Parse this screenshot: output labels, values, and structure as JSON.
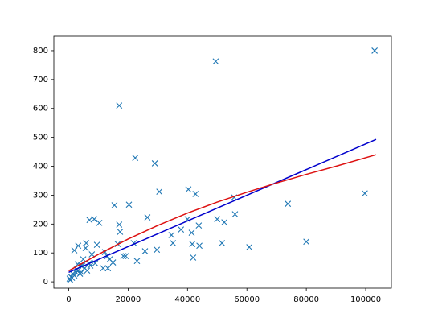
{
  "chart_data": {
    "type": "scatter",
    "xlim": [
      -5000,
      108650
    ],
    "ylim": [
      -22,
      850
    ],
    "xticks": [
      0,
      20000,
      40000,
      60000,
      80000,
      100000
    ],
    "yticks": [
      0,
      100,
      200,
      300,
      400,
      500,
      600,
      700,
      800
    ],
    "series": [
      {
        "type": "scatter",
        "marker": "x",
        "color": "#1f77b4",
        "x": [
          103000,
          49500,
          17000,
          22400,
          29000,
          40300,
          42700,
          30500,
          15400,
          20300,
          7000,
          8600,
          10300,
          26500,
          55700,
          73800,
          99700,
          56000,
          50000,
          52400,
          43800,
          40000,
          41400,
          37800,
          34600,
          35100,
          41600,
          44000,
          51600,
          17000,
          17300,
          16500,
          21900,
          18400,
          19200,
          23000,
          25700,
          29700,
          41900,
          60800,
          80000,
          1900,
          3200,
          5700,
          5900,
          9500,
          12200,
          13000,
          13800,
          11600,
          13200,
          14900,
          7800,
          6800,
          8900,
          4900,
          4100,
          2700,
          1400,
          800,
          300,
          500,
          1100,
          1900,
          2400,
          3200,
          3800,
          4300,
          5400,
          6200,
          7300,
          3000,
          4600
        ],
        "values": [
          800,
          763,
          610,
          429,
          410,
          320,
          304,
          312,
          265,
          267,
          214,
          217,
          204,
          223,
          292,
          270,
          306,
          234,
          217,
          206,
          195,
          217,
          170,
          181,
          162,
          134,
          131,
          125,
          134,
          198,
          173,
          131,
          134,
          89,
          89,
          72,
          106,
          111,
          84,
          120,
          139,
          109,
          125,
          117,
          134,
          128,
          103,
          89,
          78,
          47,
          47,
          67,
          95,
          64,
          64,
          78,
          56,
          42,
          28,
          17,
          11,
          6,
          14,
          22,
          33,
          39,
          28,
          33,
          47,
          39,
          56,
          61,
          56
        ]
      },
      {
        "type": "line",
        "color": "#0000cc",
        "x": [
          0,
          103500
        ],
        "values": [
          33,
          493
        ]
      },
      {
        "type": "line",
        "color": "#dd1111",
        "x": [
          0,
          10000,
          20000,
          30000,
          40000,
          50000,
          60000,
          70000,
          80000,
          90000,
          103500
        ],
        "values": [
          38,
          95,
          148,
          195,
          238,
          276,
          310,
          342,
          372,
          400,
          440
        ]
      }
    ]
  }
}
